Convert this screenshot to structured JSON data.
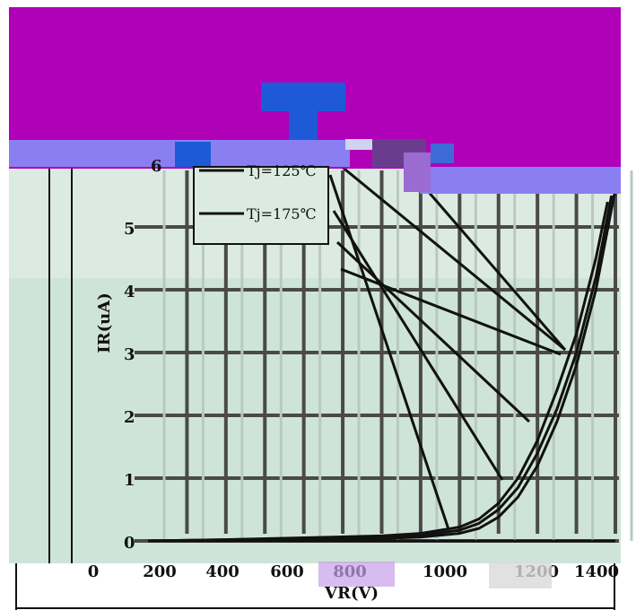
{
  "chart_data": {
    "type": "line",
    "title": "",
    "xlabel": "VR(V)",
    "ylabel": "IR(uA)",
    "xlim": [
      0,
      1400
    ],
    "ylim": [
      0,
      6
    ],
    "x_ticks": [
      "0",
      "200",
      "400",
      "600",
      "800",
      "1000",
      "1200",
      "1400"
    ],
    "y_ticks": [
      "0",
      "1",
      "2",
      "3",
      "4",
      "5",
      "6"
    ],
    "grid": true,
    "legend_position": "top-left",
    "series": [
      {
        "name": "",
        "x": [
          200,
          400,
          600,
          800,
          900,
          1000,
          1050,
          1100,
          1150,
          1200,
          1250,
          1300,
          1350,
          1380
        ],
        "y": [
          0.0,
          0.02,
          0.05,
          0.08,
          0.12,
          0.22,
          0.35,
          0.6,
          1.0,
          1.6,
          2.4,
          3.3,
          4.5,
          5.4
        ]
      },
      {
        "name": "Tj=125℃",
        "x": [
          200,
          400,
          600,
          800,
          900,
          1000,
          1050,
          1100,
          1150,
          1200,
          1250,
          1300,
          1350,
          1390
        ],
        "y": [
          0.0,
          0.02,
          0.04,
          0.06,
          0.09,
          0.17,
          0.28,
          0.5,
          0.85,
          1.4,
          2.1,
          3.0,
          4.2,
          5.5
        ]
      },
      {
        "name": "Tj=175℃",
        "x": [
          200,
          400,
          600,
          800,
          900,
          1000,
          1050,
          1100,
          1150,
          1200,
          1250,
          1300,
          1350,
          1400
        ],
        "y": [
          0.0,
          0.01,
          0.02,
          0.04,
          0.06,
          0.12,
          0.2,
          0.38,
          0.7,
          1.2,
          1.9,
          2.8,
          4.0,
          5.6
        ]
      }
    ]
  },
  "colors": {
    "plot_bg": "#dcebe2",
    "grid_dark": "#4a4a4a",
    "grid_light": "#b9c9bf",
    "curve": "#111111",
    "banner_magenta": "#b000b8",
    "banner_strip": "#8a7ff0",
    "blue_block": "#1e5ad8"
  }
}
